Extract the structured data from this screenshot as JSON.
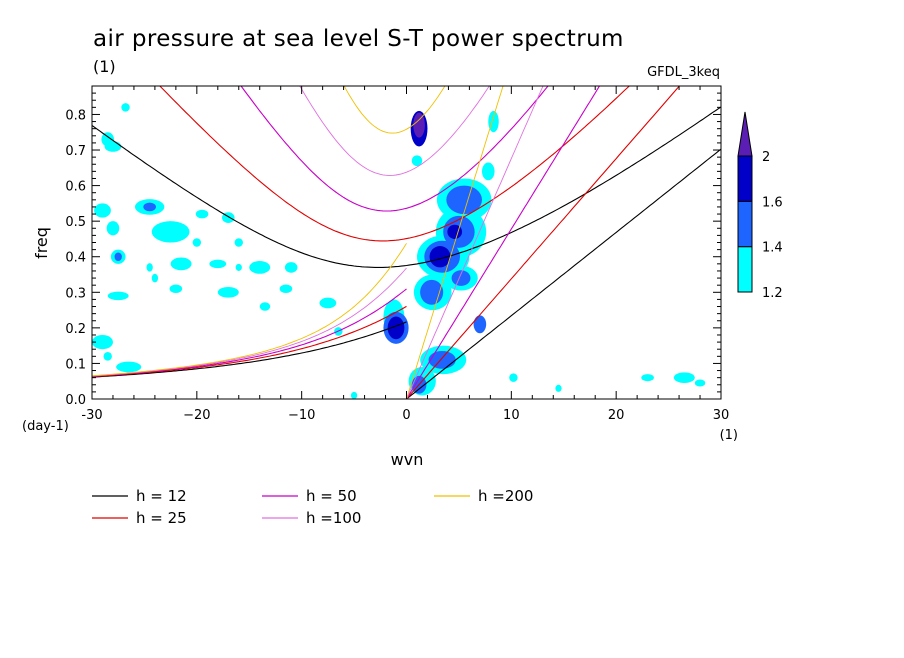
{
  "chart_data": {
    "type": "contour",
    "title": "air pressure at sea level S-T power spectrum",
    "units_label": "(1)",
    "dataset": "GFDL_3keq",
    "xlabel": "wvn",
    "ylabel": "freq",
    "x_unit": "(1)",
    "y_unit": "(day-1)",
    "xlim": [
      -30,
      30
    ],
    "ylim": [
      0,
      0.88
    ],
    "x_ticks": [
      -30,
      -20,
      -10,
      0,
      10,
      20,
      30
    ],
    "x_tick_labels": [
      "-30",
      "−20",
      "−10",
      "0",
      "10",
      "20",
      "30"
    ],
    "y_ticks": [
      0.0,
      0.1,
      0.2,
      0.3,
      0.4,
      0.5,
      0.6,
      0.7,
      0.8
    ],
    "y_tick_labels": [
      "0.0",
      "0.1",
      "0.2",
      "0.3",
      "0.4",
      "0.5",
      "0.6",
      "0.7",
      "0.8"
    ],
    "colorbar": {
      "levels": [
        1.2,
        1.4,
        1.6,
        2
      ],
      "labels": [
        "1.2",
        "1.4",
        "1.6",
        "2"
      ],
      "colors": [
        "#00ffff",
        "#1e64ff",
        "#0000c8",
        "#5a1eb4"
      ]
    },
    "dispersion_curves": [
      {
        "h": 12,
        "label": "h = 12",
        "color": "#000000"
      },
      {
        "h": 25,
        "label": "h = 25",
        "color": "#e00000"
      },
      {
        "h": 50,
        "label": "h = 50",
        "color": "#c800c8"
      },
      {
        "h": 100,
        "label": "h =100",
        "color": "#e070e0"
      },
      {
        "h": 200,
        "label": "h =200",
        "color": "#f0c000"
      }
    ],
    "blobs": [
      {
        "x": 1.2,
        "y": 0.76,
        "rx": 0.8,
        "ry": 0.05,
        "level": 3
      },
      {
        "x": 1.2,
        "y": 0.77,
        "rx": 0.55,
        "ry": 0.035,
        "level": 4
      },
      {
        "x": 5.5,
        "y": 0.56,
        "rx": 2.6,
        "ry": 0.06,
        "level": 1
      },
      {
        "x": 5.5,
        "y": 0.56,
        "rx": 1.7,
        "ry": 0.04,
        "level": 2
      },
      {
        "x": 5.2,
        "y": 0.47,
        "rx": 2.4,
        "ry": 0.07,
        "level": 1
      },
      {
        "x": 5.0,
        "y": 0.47,
        "rx": 1.5,
        "ry": 0.045,
        "level": 2
      },
      {
        "x": 4.6,
        "y": 0.47,
        "rx": 0.7,
        "ry": 0.02,
        "level": 3
      },
      {
        "x": 3.5,
        "y": 0.4,
        "rx": 2.5,
        "ry": 0.06,
        "level": 1
      },
      {
        "x": 3.4,
        "y": 0.4,
        "rx": 1.7,
        "ry": 0.045,
        "level": 2
      },
      {
        "x": 3.2,
        "y": 0.4,
        "rx": 1.0,
        "ry": 0.03,
        "level": 3
      },
      {
        "x": 2.5,
        "y": 0.3,
        "rx": 1.8,
        "ry": 0.05,
        "level": 1
      },
      {
        "x": 2.4,
        "y": 0.3,
        "rx": 1.1,
        "ry": 0.035,
        "level": 2
      },
      {
        "x": 5.2,
        "y": 0.34,
        "rx": 1.6,
        "ry": 0.035,
        "level": 1
      },
      {
        "x": 5.2,
        "y": 0.34,
        "rx": 0.9,
        "ry": 0.022,
        "level": 2
      },
      {
        "x": -1.2,
        "y": 0.23,
        "rx": 1.0,
        "ry": 0.05,
        "level": 1
      },
      {
        "x": -1.0,
        "y": 0.2,
        "rx": 1.2,
        "ry": 0.045,
        "level": 2
      },
      {
        "x": -1.0,
        "y": 0.2,
        "rx": 0.8,
        "ry": 0.032,
        "level": 3
      },
      {
        "x": 3.5,
        "y": 0.11,
        "rx": 2.2,
        "ry": 0.04,
        "level": 1
      },
      {
        "x": 3.4,
        "y": 0.11,
        "rx": 1.3,
        "ry": 0.025,
        "level": 2
      },
      {
        "x": 1.5,
        "y": 0.05,
        "rx": 1.3,
        "ry": 0.04,
        "level": 1
      },
      {
        "x": 1.2,
        "y": 0.04,
        "rx": 0.7,
        "ry": 0.025,
        "level": 2
      },
      {
        "x": 7.0,
        "y": 0.21,
        "rx": 0.6,
        "ry": 0.025,
        "level": 2
      },
      {
        "x": 7.8,
        "y": 0.64,
        "rx": 0.6,
        "ry": 0.025,
        "level": 1
      },
      {
        "x": 8.3,
        "y": 0.78,
        "rx": 0.5,
        "ry": 0.03,
        "level": 1
      },
      {
        "x": 1.0,
        "y": 0.67,
        "rx": 0.5,
        "ry": 0.015,
        "level": 1
      },
      {
        "x": -28.5,
        "y": 0.73,
        "rx": 0.6,
        "ry": 0.02,
        "level": 1
      },
      {
        "x": -28.0,
        "y": 0.71,
        "rx": 0.8,
        "ry": 0.015,
        "level": 1
      },
      {
        "x": -26.8,
        "y": 0.82,
        "rx": 0.4,
        "ry": 0.012,
        "level": 1
      },
      {
        "x": -29.0,
        "y": 0.53,
        "rx": 0.8,
        "ry": 0.02,
        "level": 1
      },
      {
        "x": -28.0,
        "y": 0.48,
        "rx": 0.6,
        "ry": 0.02,
        "level": 1
      },
      {
        "x": -24.5,
        "y": 0.54,
        "rx": 1.4,
        "ry": 0.022,
        "level": 1
      },
      {
        "x": -24.5,
        "y": 0.54,
        "rx": 0.6,
        "ry": 0.012,
        "level": 2
      },
      {
        "x": -22.5,
        "y": 0.47,
        "rx": 1.8,
        "ry": 0.03,
        "level": 1
      },
      {
        "x": -27.5,
        "y": 0.4,
        "rx": 0.7,
        "ry": 0.02,
        "level": 1
      },
      {
        "x": -27.5,
        "y": 0.4,
        "rx": 0.35,
        "ry": 0.012,
        "level": 2
      },
      {
        "x": -17.0,
        "y": 0.51,
        "rx": 0.6,
        "ry": 0.015,
        "level": 1
      },
      {
        "x": -19.5,
        "y": 0.52,
        "rx": 0.6,
        "ry": 0.012,
        "level": 1
      },
      {
        "x": -20.0,
        "y": 0.44,
        "rx": 0.4,
        "ry": 0.012,
        "level": 1
      },
      {
        "x": -16.0,
        "y": 0.44,
        "rx": 0.4,
        "ry": 0.012,
        "level": 1
      },
      {
        "x": -24.5,
        "y": 0.37,
        "rx": 0.3,
        "ry": 0.012,
        "level": 1
      },
      {
        "x": -21.5,
        "y": 0.38,
        "rx": 1.0,
        "ry": 0.018,
        "level": 1
      },
      {
        "x": -18.0,
        "y": 0.38,
        "rx": 0.8,
        "ry": 0.012,
        "level": 1
      },
      {
        "x": -14.0,
        "y": 0.37,
        "rx": 1.0,
        "ry": 0.018,
        "level": 1
      },
      {
        "x": -11.0,
        "y": 0.37,
        "rx": 0.6,
        "ry": 0.015,
        "level": 1
      },
      {
        "x": -24.0,
        "y": 0.34,
        "rx": 0.3,
        "ry": 0.012,
        "level": 1
      },
      {
        "x": -22.0,
        "y": 0.31,
        "rx": 0.6,
        "ry": 0.012,
        "level": 1
      },
      {
        "x": -27.5,
        "y": 0.29,
        "rx": 1.0,
        "ry": 0.012,
        "level": 1
      },
      {
        "x": -17.0,
        "y": 0.3,
        "rx": 1.0,
        "ry": 0.015,
        "level": 1
      },
      {
        "x": -11.5,
        "y": 0.31,
        "rx": 0.6,
        "ry": 0.012,
        "level": 1
      },
      {
        "x": -7.5,
        "y": 0.27,
        "rx": 0.8,
        "ry": 0.015,
        "level": 1
      },
      {
        "x": -13.5,
        "y": 0.26,
        "rx": 0.5,
        "ry": 0.012,
        "level": 1
      },
      {
        "x": -29.0,
        "y": 0.16,
        "rx": 1.0,
        "ry": 0.02,
        "level": 1
      },
      {
        "x": -26.5,
        "y": 0.09,
        "rx": 1.2,
        "ry": 0.015,
        "level": 1
      },
      {
        "x": -28.5,
        "y": 0.12,
        "rx": 0.4,
        "ry": 0.012,
        "level": 1
      },
      {
        "x": -6.5,
        "y": 0.19,
        "rx": 0.4,
        "ry": 0.012,
        "level": 1
      },
      {
        "x": -16.0,
        "y": 0.37,
        "rx": 0.3,
        "ry": 0.01,
        "level": 1
      },
      {
        "x": -5.0,
        "y": 0.01,
        "rx": 0.3,
        "ry": 0.01,
        "level": 1
      },
      {
        "x": 23.0,
        "y": 0.06,
        "rx": 0.6,
        "ry": 0.01,
        "level": 1
      },
      {
        "x": 26.5,
        "y": 0.06,
        "rx": 1.0,
        "ry": 0.015,
        "level": 1
      },
      {
        "x": 28.0,
        "y": 0.045,
        "rx": 0.5,
        "ry": 0.01,
        "level": 1
      },
      {
        "x": 10.2,
        "y": 0.06,
        "rx": 0.4,
        "ry": 0.012,
        "level": 1
      },
      {
        "x": 14.5,
        "y": 0.03,
        "rx": 0.3,
        "ry": 0.01,
        "level": 1
      }
    ]
  }
}
